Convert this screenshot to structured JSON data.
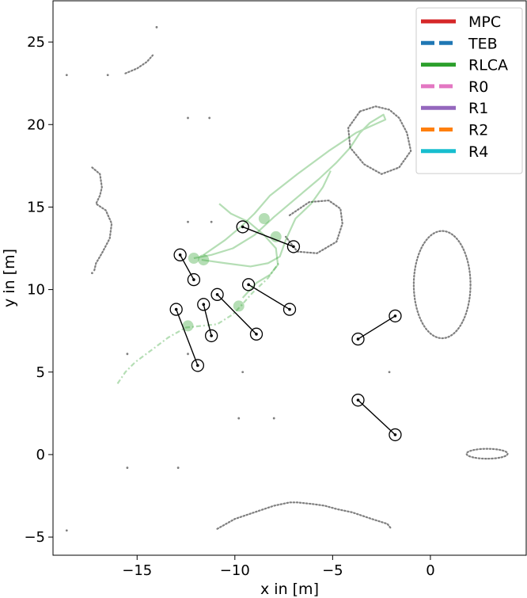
{
  "chart_data": {
    "type": "line",
    "title": "",
    "xlabel": "x in [m]",
    "ylabel": "y in [m]",
    "xlim": [
      -19.3,
      4.9
    ],
    "ylim": [
      -6.1,
      27.5
    ],
    "xticks": [
      -15,
      -10,
      -5,
      0
    ],
    "xtick_labels": [
      "−15",
      "−10",
      "−5",
      "0"
    ],
    "yticks": [
      -5,
      0,
      5,
      10,
      15,
      20,
      25
    ],
    "ytick_labels": [
      "−5",
      "0",
      "5",
      "10",
      "15",
      "20",
      "25"
    ],
    "grid": false,
    "legend_position": "top-right",
    "legend": [
      {
        "label": "MPC",
        "color": "#d62728",
        "style": "solid"
      },
      {
        "label": "TEB",
        "color": "#1f77b4",
        "style": "dashed"
      },
      {
        "label": "RLCA",
        "color": "#2ca02c",
        "style": "solid"
      },
      {
        "label": "R0",
        "color": "#e377c2",
        "style": "dashed"
      },
      {
        "label": "R1",
        "color": "#9467bd",
        "style": "solid"
      },
      {
        "label": "R2",
        "color": "#ff7f0e",
        "style": "dashed"
      },
      {
        "label": "R4",
        "color": "#17becf",
        "style": "solid"
      }
    ],
    "obstacle_color": "#7f7f7f",
    "static_obstacles": [
      {
        "kind": "polyline",
        "points": [
          [
            -15.6,
            23.1
          ],
          [
            -15.0,
            23.4
          ],
          [
            -14.5,
            23.8
          ],
          [
            -14.2,
            24.2
          ]
        ]
      },
      {
        "kind": "polyline",
        "points": [
          [
            -17.3,
            17.4
          ],
          [
            -16.9,
            17.0
          ],
          [
            -16.8,
            16.2
          ],
          [
            -16.9,
            15.7
          ],
          [
            -17.1,
            15.2
          ],
          [
            -16.6,
            14.8
          ],
          [
            -16.3,
            14.0
          ],
          [
            -16.4,
            13.1
          ],
          [
            -16.8,
            12.2
          ],
          [
            -17.1,
            11.6
          ],
          [
            -17.2,
            11.1
          ]
        ]
      },
      {
        "kind": "polyline",
        "points": [
          [
            -3.6,
            20.8
          ],
          [
            -2.8,
            21.1
          ],
          [
            -2.1,
            20.9
          ],
          [
            -1.6,
            20.4
          ],
          [
            -1.2,
            19.5
          ],
          [
            -1.0,
            18.4
          ],
          [
            -1.6,
            17.4
          ],
          [
            -2.5,
            17.0
          ],
          [
            -3.4,
            17.6
          ],
          [
            -4.1,
            18.6
          ],
          [
            -4.2,
            19.8
          ],
          [
            -3.6,
            20.8
          ]
        ]
      },
      {
        "kind": "polyline",
        "points": [
          [
            -7.2,
            14.5
          ],
          [
            -6.2,
            15.3
          ],
          [
            -5.2,
            15.4
          ],
          [
            -4.6,
            14.9
          ],
          [
            -4.5,
            14.0
          ],
          [
            -4.8,
            12.9
          ],
          [
            -5.8,
            12.2
          ],
          [
            -6.8,
            12.3
          ],
          [
            -7.4,
            13.2
          ]
        ]
      },
      {
        "kind": "ellipse",
        "cx": 0.6,
        "cy": 10.3,
        "rx": 1.45,
        "ry": 3.25
      },
      {
        "kind": "ellipse",
        "cx": 2.9,
        "cy": 0.05,
        "rx": 1.05,
        "ry": 0.3
      },
      {
        "kind": "polyline",
        "points": [
          [
            -10.9,
            -4.5
          ],
          [
            -10.0,
            -3.9
          ],
          [
            -9.0,
            -3.5
          ],
          [
            -8.0,
            -3.1
          ],
          [
            -7.2,
            -2.9
          ],
          [
            -6.8,
            -2.9
          ],
          [
            -6.0,
            -3.0
          ],
          [
            -5.4,
            -3.1
          ],
          [
            -4.8,
            -3.3
          ],
          [
            -4.0,
            -3.5
          ],
          [
            -3.0,
            -3.9
          ],
          [
            -2.2,
            -4.2
          ],
          [
            -2.0,
            -4.5
          ]
        ]
      },
      {
        "kind": "points",
        "points": [
          [
            -18.6,
            23.0
          ],
          [
            -16.5,
            23.0
          ],
          [
            -14.0,
            25.9
          ],
          [
            -12.4,
            20.4
          ],
          [
            -11.3,
            20.4
          ],
          [
            -12.4,
            14.1
          ],
          [
            -11.2,
            14.1
          ],
          [
            -17.3,
            11.0
          ],
          [
            -15.5,
            6.1
          ],
          [
            -12.4,
            6.1
          ],
          [
            -15.5,
            -0.8
          ],
          [
            -12.9,
            -0.8
          ],
          [
            -18.6,
            -4.6
          ],
          [
            -9.8,
            2.2
          ],
          [
            -8.0,
            2.2
          ],
          [
            -9.6,
            5.0
          ],
          [
            -2.1,
            5.0
          ]
        ]
      }
    ],
    "pedestrians": [
      {
        "start": [
          -13.0,
          8.8
        ],
        "end": [
          -11.9,
          5.4
        ]
      },
      {
        "start": [
          -11.6,
          9.1
        ],
        "end": [
          -11.2,
          7.2
        ]
      },
      {
        "start": [
          -12.8,
          12.1
        ],
        "end": [
          -12.1,
          10.6
        ]
      },
      {
        "start": [
          -10.9,
          9.7
        ],
        "end": [
          -8.9,
          7.3
        ]
      },
      {
        "start": [
          -9.3,
          10.3
        ],
        "end": [
          -7.2,
          8.8
        ]
      },
      {
        "start": [
          -9.6,
          13.8
        ],
        "end": [
          -7.0,
          12.6
        ]
      },
      {
        "start": [
          -3.7,
          7.0
        ],
        "end": [
          -1.8,
          8.4
        ]
      },
      {
        "start": [
          -3.7,
          3.3
        ],
        "end": [
          -1.8,
          1.2
        ]
      }
    ],
    "rlca_paths": [
      [
        [
          -16.0,
          4.3
        ],
        [
          -15.6,
          5.0
        ],
        [
          -15.1,
          5.6
        ],
        [
          -14.3,
          6.3
        ],
        [
          -13.4,
          7.1
        ],
        [
          -12.5,
          7.7
        ],
        [
          -11.7,
          7.8
        ],
        [
          -10.9,
          7.9
        ],
        [
          -10.1,
          8.5
        ],
        [
          -9.7,
          9.0
        ],
        [
          -9.1,
          9.8
        ],
        [
          -8.3,
          10.7
        ],
        [
          -7.7,
          11.7
        ]
      ],
      [
        [
          -12.1,
          11.9
        ],
        [
          -11.2,
          12.1
        ],
        [
          -10.1,
          12.5
        ],
        [
          -9.0,
          13.3
        ],
        [
          -8.0,
          14.4
        ],
        [
          -6.8,
          15.6
        ],
        [
          -5.7,
          16.7
        ],
        [
          -4.8,
          17.7
        ],
        [
          -4.1,
          18.6
        ],
        [
          -3.6,
          19.5
        ],
        [
          -3.1,
          20.1
        ],
        [
          -2.4,
          20.6
        ],
        [
          -2.3,
          20.3
        ],
        [
          -3.8,
          19.5
        ],
        [
          -5.2,
          18.4
        ],
        [
          -6.8,
          17.0
        ],
        [
          -8.2,
          15.7
        ],
        [
          -9.0,
          14.6
        ],
        [
          -9.7,
          13.8
        ],
        [
          -10.5,
          13.0
        ],
        [
          -11.6,
          12.1
        ]
      ],
      [
        [
          -11.7,
          11.8
        ],
        [
          -10.5,
          11.6
        ],
        [
          -9.2,
          11.4
        ],
        [
          -8.3,
          11.6
        ],
        [
          -7.7,
          12.0
        ],
        [
          -7.4,
          13.0
        ],
        [
          -6.9,
          14.3
        ],
        [
          -6.1,
          15.2
        ],
        [
          -5.5,
          16.2
        ],
        [
          -5.1,
          17.2
        ]
      ],
      [
        [
          -9.6,
          9.5
        ],
        [
          -8.9,
          10.4
        ],
        [
          -8.2,
          10.9
        ],
        [
          -7.8,
          11.5
        ],
        [
          -7.9,
          12.5
        ],
        [
          -8.5,
          13.3
        ],
        [
          -9.3,
          14.1
        ],
        [
          -10.2,
          14.6
        ],
        [
          -10.8,
          15.2
        ]
      ]
    ],
    "rlca_blobs": [
      [
        -12.1,
        11.9
      ],
      [
        -11.6,
        11.8
      ],
      [
        -7.9,
        13.2
      ],
      [
        -9.8,
        9.0
      ],
      [
        -12.4,
        7.8
      ],
      [
        -8.5,
        14.3
      ]
    ]
  }
}
